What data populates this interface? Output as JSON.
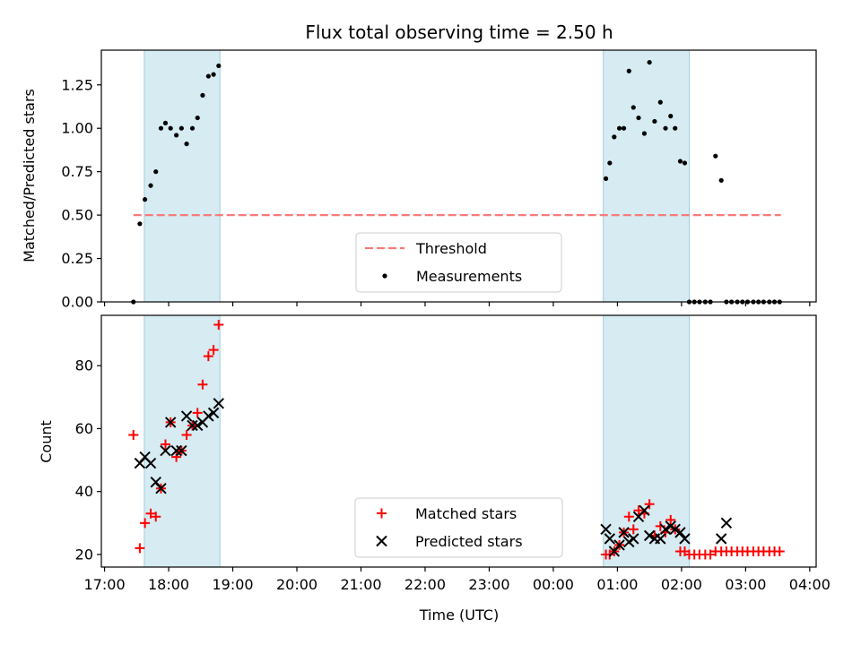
{
  "chart_data": [
    {
      "type": "scatter",
      "panel": "top",
      "title": "Flux total observing time = 2.50 h",
      "xlabel": "",
      "ylabel": "Matched/Predicted stars",
      "xlim": [
        16.95,
        28.1
      ],
      "ylim": [
        0,
        1.45
      ],
      "yticks": [
        0.0,
        0.25,
        0.5,
        0.75,
        1.0,
        1.25
      ],
      "ytick_labels": [
        "0.00",
        "0.25",
        "0.50",
        "0.75",
        "1.00",
        "1.25"
      ],
      "shaded_intervals": [
        [
          17.62,
          18.8
        ],
        [
          24.78,
          26.12
        ]
      ],
      "threshold": {
        "label": "Threshold",
        "y": 0.5,
        "x_start": 17.45,
        "x_end": 27.55,
        "color": "#f87a7a"
      },
      "legend": {
        "position": "lower-center",
        "entries": [
          "Threshold",
          "Measurements"
        ]
      },
      "series": [
        {
          "name": "Measurements",
          "color": "#000000",
          "marker": "dot",
          "x": [
            17.45,
            17.55,
            17.63,
            17.72,
            17.8,
            17.88,
            17.95,
            18.03,
            18.12,
            18.2,
            18.28,
            18.37,
            18.45,
            18.53,
            18.62,
            18.7,
            18.78,
            24.82,
            24.88,
            24.95,
            25.03,
            25.1,
            25.18,
            25.25,
            25.33,
            25.42,
            25.5,
            25.58,
            25.67,
            25.75,
            25.83,
            25.9,
            25.98,
            26.05,
            26.12,
            26.2,
            26.28,
            26.37,
            26.45,
            26.53,
            26.62,
            26.7,
            26.78,
            26.87,
            26.95,
            27.03,
            27.12,
            27.2,
            27.28,
            27.37,
            27.45,
            27.53
          ],
          "y": [
            0.0,
            0.45,
            0.59,
            0.67,
            0.75,
            1.0,
            1.03,
            1.0,
            0.96,
            1.0,
            0.91,
            1.0,
            1.06,
            1.19,
            1.3,
            1.31,
            1.36,
            0.71,
            0.8,
            0.95,
            1.0,
            1.0,
            1.33,
            1.12,
            1.06,
            0.97,
            1.38,
            1.04,
            1.15,
            1.0,
            1.07,
            1.0,
            0.81,
            0.8,
            0.0,
            0.0,
            0.0,
            0.0,
            0.0,
            0.84,
            0.7,
            0.0,
            0.0,
            0.0,
            0.0,
            0.0,
            0.0,
            0.0,
            0.0,
            0.0,
            0.0,
            0.0
          ]
        }
      ]
    },
    {
      "type": "scatter",
      "panel": "bottom",
      "title": "",
      "xlabel": "Time (UTC)",
      "ylabel": "Count",
      "xlim": [
        16.95,
        28.1
      ],
      "ylim": [
        16,
        96
      ],
      "yticks": [
        20,
        40,
        60,
        80
      ],
      "ytick_labels": [
        "20",
        "40",
        "60",
        "80"
      ],
      "xticks": [
        17,
        18,
        19,
        20,
        21,
        22,
        23,
        24,
        25,
        26,
        27,
        28
      ],
      "xtick_labels": [
        "17:00",
        "18:00",
        "19:00",
        "20:00",
        "21:00",
        "22:00",
        "23:00",
        "00:00",
        "01:00",
        "02:00",
        "03:00",
        "04:00"
      ],
      "shaded_intervals": [
        [
          17.62,
          18.8
        ],
        [
          24.78,
          26.12
        ]
      ],
      "legend": {
        "position": "lower-center",
        "entries": [
          "Matched stars",
          "Predicted stars"
        ]
      },
      "series": [
        {
          "name": "Matched stars",
          "color": "#ff0000",
          "marker": "plus",
          "x": [
            17.45,
            17.55,
            17.63,
            17.72,
            17.8,
            17.88,
            17.95,
            18.03,
            18.12,
            18.2,
            18.28,
            18.37,
            18.45,
            18.53,
            18.62,
            18.7,
            18.78,
            24.82,
            24.88,
            24.95,
            25.03,
            25.1,
            25.18,
            25.25,
            25.33,
            25.42,
            25.5,
            25.58,
            25.67,
            25.75,
            25.83,
            25.9,
            25.98,
            26.05,
            26.12,
            26.2,
            26.28,
            26.37,
            26.45,
            26.53,
            26.62,
            26.7,
            26.78,
            26.87,
            26.95,
            27.03,
            27.12,
            27.2,
            27.28,
            27.37,
            27.45,
            27.53
          ],
          "y": [
            58,
            22,
            30,
            33,
            32,
            41,
            55,
            62,
            51,
            53,
            58,
            61,
            65,
            74,
            83,
            85,
            93,
            20,
            20,
            21,
            23,
            27,
            32,
            28,
            34,
            33,
            36,
            26,
            29,
            27,
            31,
            28,
            21,
            21,
            20,
            20,
            20,
            20,
            20,
            21,
            21,
            21,
            21,
            21,
            21,
            21,
            21,
            21,
            21,
            21,
            21,
            21
          ]
        },
        {
          "name": "Predicted stars",
          "color": "#000000",
          "marker": "x",
          "x": [
            17.55,
            17.63,
            17.72,
            17.8,
            17.88,
            17.95,
            18.03,
            18.12,
            18.2,
            18.28,
            18.37,
            18.45,
            18.53,
            18.62,
            18.7,
            18.78,
            24.82,
            24.88,
            24.95,
            25.03,
            25.1,
            25.18,
            25.25,
            25.33,
            25.42,
            25.5,
            25.58,
            25.67,
            25.75,
            25.83,
            25.9,
            25.98,
            26.05,
            26.62,
            26.7
          ],
          "y": [
            49,
            51,
            49,
            43,
            41,
            53,
            62,
            53,
            53,
            64,
            61,
            61,
            62,
            64,
            65,
            68,
            28,
            25,
            21,
            23,
            27,
            24,
            25,
            32,
            34,
            26,
            25,
            25,
            28,
            29,
            28,
            27,
            25,
            25,
            30
          ]
        }
      ]
    }
  ]
}
